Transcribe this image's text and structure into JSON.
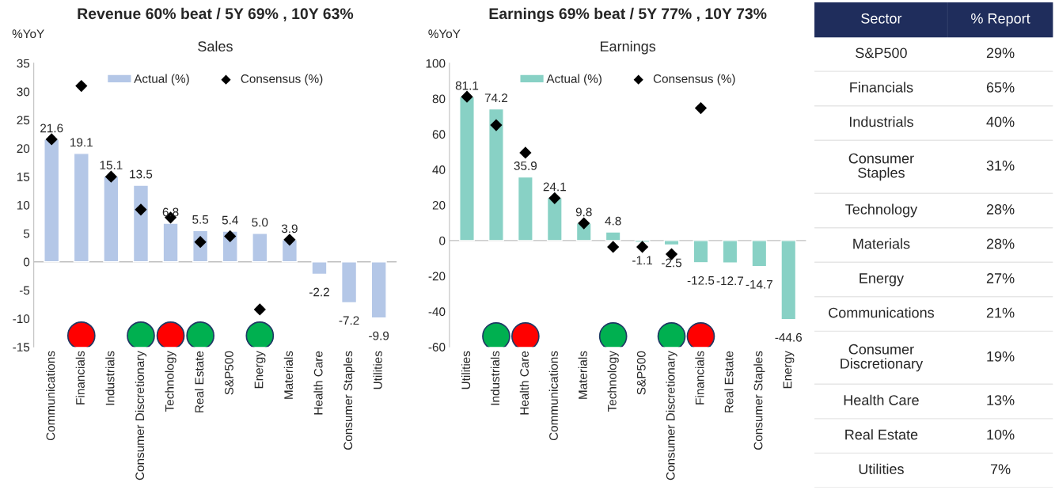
{
  "chart_data": [
    {
      "type": "bar",
      "title": "Revenue 60% beat / 5Y 69% , 10Y 63%",
      "subtitle": "Sales",
      "ylabel": "%YoY",
      "categories": [
        "Communications",
        "Financials",
        "Industrials",
        "Consumer Discretionary",
        "Technology",
        "Real Estate",
        "S&P500",
        "Energy",
        "Materials",
        "Health Care",
        "Consumer Staples",
        "Utilities"
      ],
      "series": [
        {
          "name": "Actual (%)",
          "type": "bar",
          "color": "#b4c7e7",
          "values": [
            21.6,
            19.1,
            15.1,
            13.5,
            6.8,
            5.5,
            5.4,
            5.0,
            3.9,
            -2.2,
            -7.2,
            -9.9
          ],
          "value_labels": [
            "21.6",
            "19.1",
            "15.1",
            "13.5",
            "6.8",
            "5.5",
            "5.4",
            "5.0",
            "3.9",
            "-2.2",
            "-7.2",
            "-9.9"
          ]
        },
        {
          "name": "Consensus (%)",
          "type": "scatter",
          "marker": "diamond",
          "color": "#000000",
          "values": [
            21.6,
            31.0,
            15.0,
            9.2,
            7.8,
            3.5,
            4.5,
            -8.4,
            3.9,
            null,
            null,
            null
          ]
        },
        {
          "type": "scatter",
          "marker": "circle",
          "colors": [
            null,
            "#ff0000",
            null,
            "#00b050",
            "#ff0000",
            "#00b050",
            null,
            "#00b050",
            null,
            null,
            null,
            null
          ],
          "values": [
            null,
            -13,
            null,
            -13,
            -13,
            -13,
            null,
            -13,
            null,
            null,
            null,
            null
          ]
        }
      ],
      "ylim": [
        -15,
        35
      ],
      "yticks": [
        -15,
        -10,
        -5,
        0,
        5,
        10,
        15,
        20,
        25,
        30,
        35
      ],
      "legend": "top"
    },
    {
      "type": "bar",
      "title": "Earnings 69% beat / 5Y 77% , 10Y 73%",
      "subtitle": "Earnings",
      "ylabel": "%YoY",
      "categories": [
        "Utilities",
        "Industrials",
        "Health Care",
        "Communications",
        "Materials",
        "Technology",
        "S&P500",
        "Consumer Discretionary",
        "Financials",
        "Real Estate",
        "Consumer Staples",
        "Energy"
      ],
      "series": [
        {
          "name": "Actual (%)",
          "type": "bar",
          "color": "#88d1c5",
          "values": [
            81.1,
            74.2,
            35.9,
            24.1,
            9.8,
            4.8,
            -1.1,
            -2.5,
            -12.5,
            -12.7,
            -14.7,
            -44.6
          ],
          "value_labels": [
            "81.1",
            "74.2",
            "35.9",
            "24.1",
            "9.8",
            "4.8",
            "-1.1",
            "-2.5",
            "-12.5",
            "-12.7",
            "-14.7",
            "-44.6"
          ]
        },
        {
          "name": "Consensus (%)",
          "type": "scatter",
          "marker": "diamond",
          "color": "#000000",
          "values": [
            81.1,
            65.1,
            49.5,
            23.9,
            9.7,
            -3.6,
            -3.6,
            -7.7,
            74.7,
            null,
            null,
            null
          ]
        },
        {
          "type": "scatter",
          "marker": "circle",
          "colors": [
            null,
            "#00b050",
            "#ff0000",
            null,
            null,
            "#00b050",
            null,
            "#00b050",
            "#ff0000",
            null,
            null,
            null
          ],
          "values": [
            null,
            -54,
            -54,
            null,
            null,
            -54,
            null,
            -54,
            -54,
            null,
            null,
            null
          ]
        }
      ],
      "ylim": [
        -60,
        100
      ],
      "yticks": [
        -60,
        -40,
        -20,
        0,
        20,
        40,
        60,
        80,
        100
      ],
      "legend": "top"
    },
    {
      "type": "other",
      "xlabel": "Sector",
      "ylabel": "% Report",
      "categories": [
        "S&P500",
        "Financials",
        "Industrials",
        "Consumer Staples",
        "Technology",
        "Materials",
        "Energy",
        "Communications",
        "Consumer Discretionary",
        "Health Care",
        "Real Estate",
        "Utilities"
      ],
      "value_labels": [
        "29%",
        "65%",
        "40%",
        "31%",
        "28%",
        "28%",
        "27%",
        "21%",
        "19%",
        "13%",
        "10%",
        "7%"
      ],
      "color": "#1f2d5c"
    }
  ]
}
